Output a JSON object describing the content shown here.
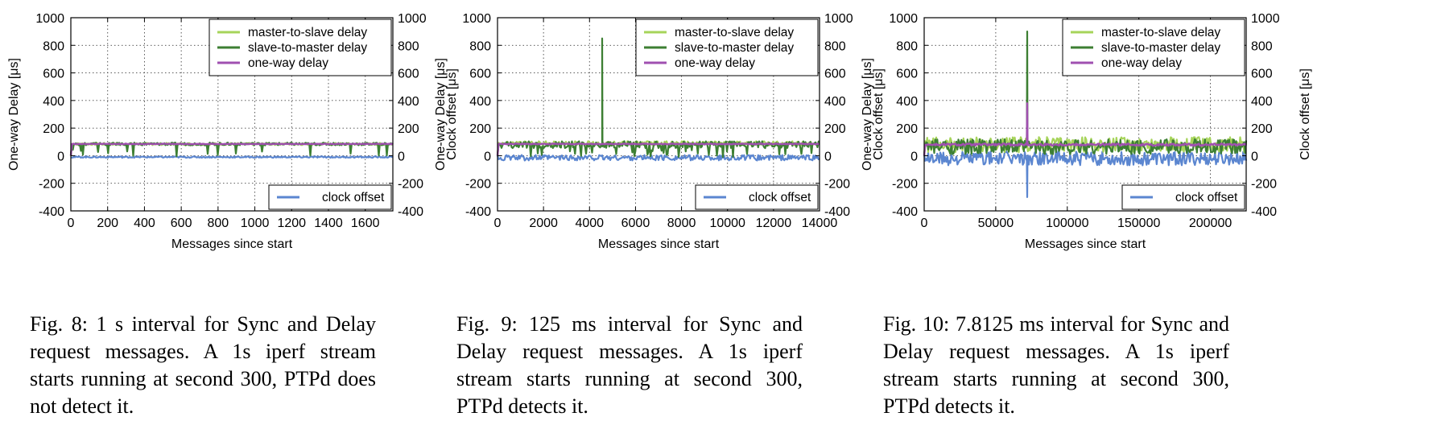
{
  "colors": {
    "master_to_slave": "#a6d45a",
    "slave_to_master": "#3d7f33",
    "one_way": "#a050b0",
    "clock_offset": "#5b86d0"
  },
  "chart_data": [
    {
      "type": "line",
      "xlabel": "Messages since start",
      "ylabel_left": "One-way Delay [μs]",
      "ylabel_right": "Clock offset [μs]",
      "xlim": [
        0,
        1750
      ],
      "xticks": [
        0,
        200,
        400,
        600,
        800,
        1000,
        1200,
        1400,
        1600
      ],
      "ylim": [
        -400,
        1000
      ],
      "yticks": [
        -400,
        -200,
        0,
        200,
        400,
        600,
        800,
        1000
      ],
      "ylim_right": [
        -400,
        1000
      ],
      "yticks_right": [
        -400,
        -200,
        0,
        200,
        400,
        600,
        800,
        1000
      ],
      "grid": true,
      "legend_placement": "top-right",
      "legend2_placement": "bottom-right",
      "series": [
        {
          "name": "master-to-slave delay",
          "baseline": 85,
          "noise": 8,
          "dips": 0,
          "spike": null
        },
        {
          "name": "slave-to-master delay",
          "baseline": 85,
          "noise": 10,
          "dips": 16,
          "spike": null
        },
        {
          "name": "one-way delay",
          "baseline": 85,
          "noise": 2,
          "dips": 0,
          "spike": null
        },
        {
          "name": "clock offset",
          "baseline": -10,
          "noise": 5,
          "dips": 0,
          "spike": null
        }
      ],
      "caption": "Fig. 8: 1 s interval for Sync and Delay request messages. A 1s iperf stream starts running at second 300, PTPd does not detect it."
    },
    {
      "type": "line",
      "xlabel": "Messages since start",
      "ylabel_left": "One-way Delay [μs]",
      "ylabel_right": "Clock offset [μs]",
      "xlim": [
        0,
        14000
      ],
      "xticks": [
        0,
        2000,
        4000,
        6000,
        8000,
        10000,
        12000,
        14000
      ],
      "ylim": [
        -400,
        1000
      ],
      "yticks": [
        -400,
        -200,
        0,
        200,
        400,
        600,
        800,
        1000
      ],
      "ylim_right": [
        -400,
        1000
      ],
      "yticks_right": [
        -400,
        -200,
        0,
        200,
        400,
        600,
        800,
        1000
      ],
      "grid": true,
      "legend_placement": "top-right",
      "legend2_placement": "bottom-right",
      "series": [
        {
          "name": "master-to-slave delay",
          "baseline": 90,
          "noise": 15,
          "dips": 0,
          "spike": null
        },
        {
          "name": "slave-to-master delay",
          "baseline": 80,
          "noise": 25,
          "dips": 40,
          "spike": {
            "x": 4550,
            "y": 850
          }
        },
        {
          "name": "one-way delay",
          "baseline": 85,
          "noise": 3,
          "dips": 0,
          "spike": null
        },
        {
          "name": "clock offset",
          "baseline": -15,
          "noise": 20,
          "dips": 0,
          "spike": null
        }
      ],
      "caption": "Fig. 9: 125 ms interval for Sync and Delay request messages. A 1s iperf stream starts running at second 300, PTPd detects it."
    },
    {
      "type": "line",
      "xlabel": "Messages since start",
      "ylabel_left": "One-way Delay [μs]",
      "ylabel_right": "Clock offset [μs]",
      "xlim": [
        0,
        225000
      ],
      "xticks": [
        0,
        50000,
        100000,
        150000,
        200000
      ],
      "ylim": [
        -400,
        1000
      ],
      "yticks": [
        -400,
        -200,
        0,
        200,
        400,
        600,
        800,
        1000
      ],
      "ylim_right": [
        -400,
        1000
      ],
      "yticks_right": [
        -400,
        -200,
        0,
        200,
        400,
        600,
        800,
        1000
      ],
      "grid": true,
      "legend_placement": "top-right",
      "legend2_placement": "bottom-right",
      "series": [
        {
          "name": "master-to-slave delay",
          "baseline": 80,
          "noise": 55,
          "dips": 0,
          "spike": null
        },
        {
          "name": "slave-to-master delay",
          "baseline": 65,
          "noise": 55,
          "dips": 0,
          "spike": {
            "x": 72000,
            "y": 900
          }
        },
        {
          "name": "one-way delay",
          "baseline": 80,
          "noise": 8,
          "dips": 0,
          "spike": {
            "x": 72000,
            "y": 380
          }
        },
        {
          "name": "clock offset",
          "baseline": -20,
          "noise": 50,
          "dips": 0,
          "spike": {
            "x": 72000,
            "y": -300
          }
        }
      ],
      "caption": "Fig. 10: 7.8125 ms interval for Sync and Delay request messages. A 1s iperf stream starts running at second 300, PTPd detects it."
    }
  ]
}
